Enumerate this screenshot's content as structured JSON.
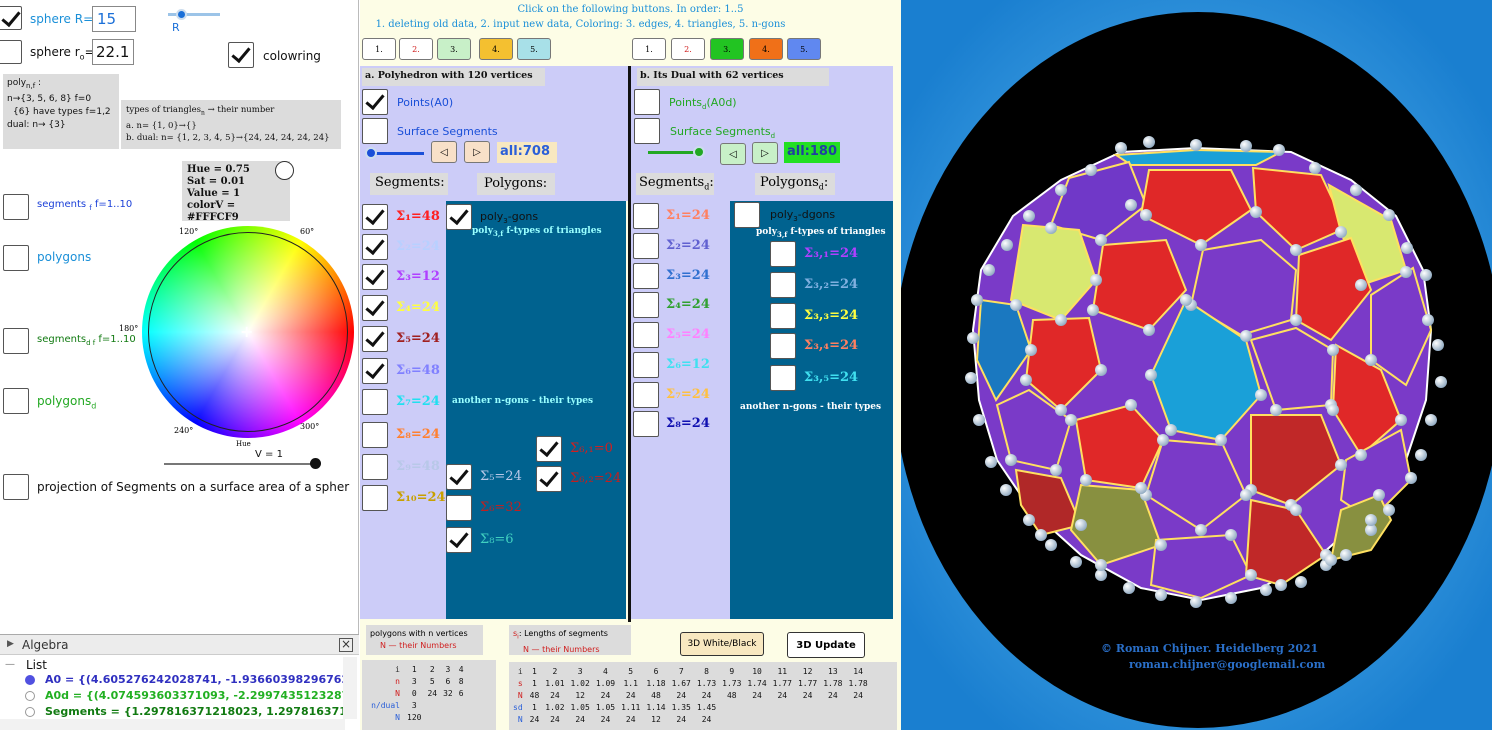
{
  "left": {
    "sphere_R_label": "sphere R=",
    "sphere_R_value": "15",
    "slider_R_label": "R",
    "sphere_r0_label": "sphere  r",
    "sphere_r0_sub": "o",
    "sphere_r0_eq": "=",
    "sphere_r0_value": "22.1",
    "colowring_label": "colowring",
    "poly_box": {
      "l1": "poly",
      "l1_sub": "n,f",
      "l1_rest": " :",
      "l2": "n→{3, 5, 6, 8}  f=0",
      "l3": "{6} have types f=1,2",
      "l4": "dual: n→  {3}"
    },
    "types_box": {
      "l1": "types of triangles",
      "l1_sub": "n",
      "l1_rest": " → their number",
      "l2": "a.        n= {1, 0}→{}",
      "l3": "b. dual: n= {1, 2, 3, 4, 5}→{24, 24, 24, 24, 24}"
    },
    "hsv_box": {
      "hue": "Hue = 0.75",
      "sat": "Sat = 0.01",
      "value": "Value = 1",
      "color": "colorV = #FFFCF9"
    },
    "segments_f": "segments",
    "segments_f_sub": "f",
    "segments_f_rest": " f=1..10",
    "polygons": "polygons",
    "segments_df": "segments",
    "segments_df_sub": "d f",
    "segments_df_rest": " f=1..10",
    "polygons_d": "polygons",
    "polygons_d_sub": "d",
    "projection": "projection of Segments on a surface area of a spher",
    "wheel": {
      "a120": "120°",
      "a60": "60°",
      "a180": "180°",
      "a240": "240°",
      "a300": "300°",
      "hue": "Hue"
    },
    "v_label": "V = 1",
    "algebra": {
      "title": "Algebra",
      "list": "List",
      "a0": "A0 = {(4.605276242028741, -1.936603982967625, -0",
      "a0d": "A0d = {(4.074593603371093, -2.29974351232871, -1",
      "segments": "Segments = {1.297816371218023, 1.29781637121а"
    }
  },
  "mid": {
    "header1": "Click on the following buttons. In order: 1..5",
    "header2": "1. deleting old data, 2. input new data, Coloring: 3. edges, 4. triangles, 5. n-gons",
    "buttons_a": [
      "1.",
      "2.",
      "3.",
      "4.",
      "5."
    ],
    "buttons_b": [
      "1.",
      "2.",
      "3.",
      "4.",
      "5."
    ],
    "colors_a": [
      "#ffffff",
      "#ffffff",
      "#c8f0c8",
      "#f4c030",
      "#a8e0e8"
    ],
    "colors_b": [
      "#ffffff",
      "#ffffff",
      "#22c422",
      "#f07018",
      "#6088f0"
    ],
    "poly_title": "a. Polyhedron with 120 vertices",
    "dual_title": "b. Its Dual with 62  vertices",
    "points_a0": "Points(A0)",
    "points_d": "Points",
    "points_d_sub": "d",
    "points_d_rest": "(A0d)",
    "surface_segments": "Surface Segments",
    "surface_segments_d": "Surface Segments",
    "surface_segments_d_sub": "d",
    "all_a": "all:708",
    "all_b": "all:180",
    "segments_a": "Segments:",
    "polygons_a": "Polygons:",
    "segments_b": "Segments",
    "segments_b_sub": "d",
    "segments_b_rest": ":",
    "polygons_b": "Polygons",
    "polygons_b_sub": "d",
    "polygons_b_rest": ":",
    "sigma_a": [
      {
        "t": "Σ₁=48",
        "c": "#ff2020"
      },
      {
        "t": "Σ₂=24",
        "c": "#b8d0ff"
      },
      {
        "t": "Σ₃=12",
        "c": "#b040ff"
      },
      {
        "t": "Σ₄=24",
        "c": "#ffff40"
      },
      {
        "t": "Σ₅=24",
        "c": "#a02020"
      },
      {
        "t": "Σ₆=48",
        "c": "#8080ff"
      },
      {
        "t": "Σ₇=24",
        "c": "#20e0f0"
      },
      {
        "t": "Σ₈=24",
        "c": "#ff8030"
      },
      {
        "t": "Σ₉=48",
        "c": "#b8c8e8"
      },
      {
        "t": "Σ₁₀=24",
        "c": "#c8a000"
      }
    ],
    "sigma_b": [
      {
        "t": "Σ₁=24",
        "c": "#ff8060"
      },
      {
        "t": "Σ₂=24",
        "c": "#6060d0"
      },
      {
        "t": "Σ₃=24",
        "c": "#3070d0"
      },
      {
        "t": "Σ₄=24",
        "c": "#30a030"
      },
      {
        "t": "Σ₅=24",
        "c": "#ff80ff"
      },
      {
        "t": "Σ₆=12",
        "c": "#40e0f0"
      },
      {
        "t": "Σ₇=24",
        "c": "#ffc040"
      },
      {
        "t": "Σ₈=24",
        "c": "#1010b0"
      }
    ],
    "poly3_gons": "poly",
    "poly3_gons_sub": "3",
    "poly3_gons_rest": "-gons",
    "poly3f": "poly",
    "poly3f_sub": "3,f",
    "poly3f_rest": "  f-types of triangles",
    "another_ngons": "another n-gons -  their types",
    "ngon_items_a": [
      {
        "t": "Σ₆,₁=0",
        "c": "#d02020"
      },
      {
        "t": "Σ₆,₂=24",
        "c": "#c02020"
      },
      {
        "t": "Σ₅=24",
        "c": "#b8c8e8"
      },
      {
        "t": "Σ₆=32",
        "c": "#c02020"
      },
      {
        "t": "Σ₈=6",
        "c": "#40d0c0"
      }
    ],
    "poly3_dgons": "poly",
    "poly3_dgons_sub": "3",
    "poly3_dgons_rest": "-dgons",
    "poly3f_d": "poly",
    "poly3f_d_sub": "3,f",
    "poly3f_d_rest": "  f-types of triangles",
    "dual_tri": [
      {
        "t": "Σ₃,₁=24",
        "c": "#b040ff"
      },
      {
        "t": "Σ₃,₂=24",
        "c": "#80b0e0"
      },
      {
        "t": "Σ₃,₃=24",
        "c": "#ffff40"
      },
      {
        "t": "Σ₃,₄=24",
        "c": "#ff8060"
      },
      {
        "t": "Σ₃,₅=24",
        "c": "#40e0f0"
      }
    ],
    "another_ngons_d": "another n-gons -  their types",
    "polygons_nv": "polygons with n vertices",
    "polygons_nv2": "N — their Numbers",
    "lengths": ": Lengths of segments",
    "lengths_s": "s",
    "lengths_s_sub": "i",
    "lengths2": "N — their Numbers",
    "btn_3d_wb": "3D White/Black",
    "btn_3d_update": "3D Update",
    "table_a": {
      "rows": [
        {
          "h": "i",
          "v": [
            "1",
            "2",
            "3",
            "4"
          ]
        },
        {
          "h": "n",
          "v": [
            "3",
            "5",
            "6",
            "8"
          ]
        },
        {
          "h": "N",
          "v": [
            "0",
            "24",
            "32",
            "6"
          ]
        },
        {
          "h": "n/dual",
          "v": [
            "3",
            "",
            "",
            ""
          ]
        },
        {
          "h": "N",
          "v": [
            "120",
            "",
            "",
            ""
          ]
        }
      ]
    },
    "table_b": {
      "rows": [
        {
          "h": "i",
          "v": [
            "1",
            "2",
            "3",
            "4",
            "5",
            "6",
            "7",
            "8",
            "9",
            "10",
            "11",
            "12",
            "13",
            "14"
          ]
        },
        {
          "h": "s",
          "v": [
            "1",
            "1.01",
            "1.02",
            "1.09",
            "1.1",
            "1.18",
            "1.67",
            "1.73",
            "1.73",
            "1.74",
            "1.77",
            "1.77",
            "1.78",
            "1.78"
          ]
        },
        {
          "h": "N",
          "v": [
            "48",
            "24",
            "12",
            "24",
            "24",
            "48",
            "24",
            "24",
            "48",
            "24",
            "24",
            "24",
            "24",
            "24"
          ]
        },
        {
          "h": "sd",
          "v": [
            "1",
            "1.02",
            "1.05",
            "1.05",
            "1.11",
            "1.14",
            "1.35",
            "1.45",
            "",
            "",
            "",
            "",
            "",
            ""
          ]
        },
        {
          "h": "N",
          "v": [
            "24",
            "24",
            "24",
            "24",
            "24",
            "12",
            "24",
            "24",
            "",
            "",
            "",
            "",
            "",
            ""
          ]
        }
      ]
    }
  },
  "right": {
    "copyright": "©   Roman Chijner. Heidelberg 2021",
    "email": "roman.chijner@googlemail.com"
  }
}
